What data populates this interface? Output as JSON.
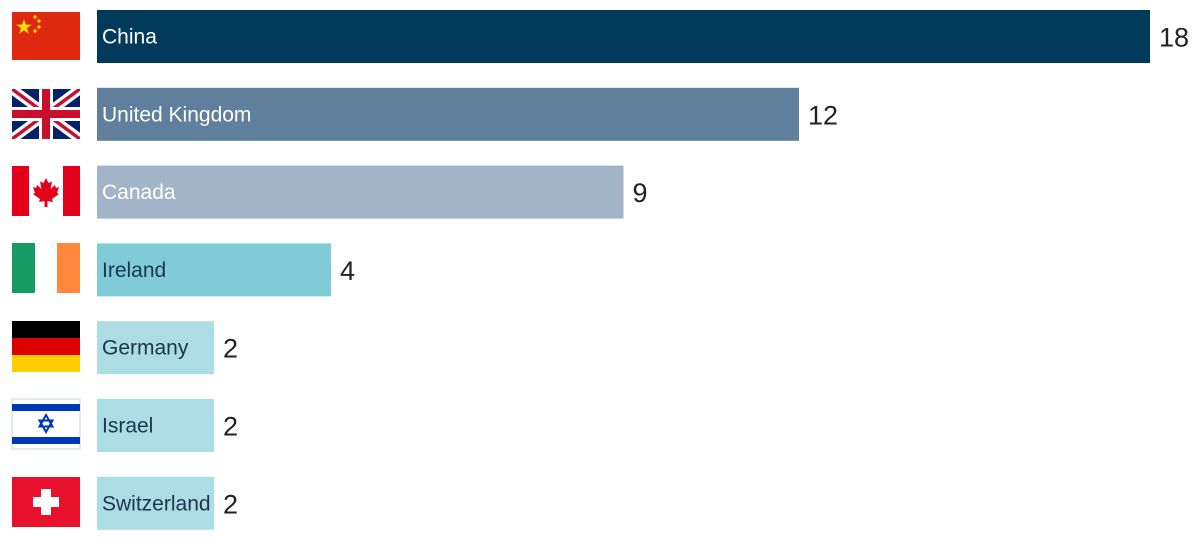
{
  "chart_data": {
    "type": "bar",
    "orientation": "horizontal",
    "title": "",
    "xlabel": "",
    "ylabel": "",
    "categories": [
      "China",
      "United Kingdom",
      "Canada",
      "Ireland",
      "Germany",
      "Israel",
      "Switzerland"
    ],
    "values": [
      18,
      12,
      9,
      4,
      2,
      2,
      2
    ],
    "xlim": [
      0,
      18
    ],
    "grid": false,
    "legend": "none",
    "bar_colors": [
      "#023a5c",
      "#5f7f9d",
      "#a2b5c8",
      "#7fcbd8",
      "#acdde4",
      "#acdde4",
      "#acdde4"
    ],
    "label_colors": [
      "#ffffff",
      "#ffffff",
      "#ffffff",
      "#1c3550",
      "#1c3550",
      "#1c3550",
      "#1c3550"
    ],
    "flag_icons": [
      "china-flag-icon",
      "uk-flag-icon",
      "canada-flag-icon",
      "ireland-flag-icon",
      "germany-flag-icon",
      "israel-flag-icon",
      "switzerland-flag-icon"
    ]
  }
}
